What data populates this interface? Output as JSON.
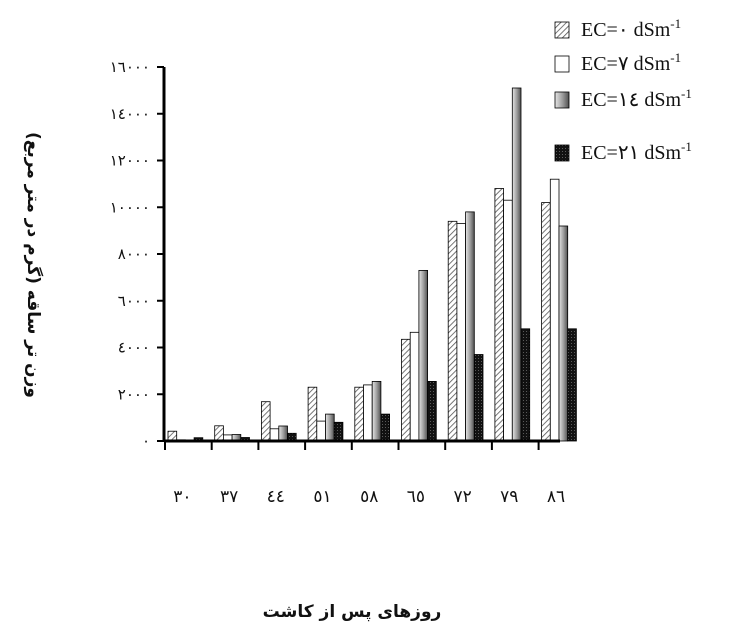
{
  "chart_data": {
    "type": "bar",
    "xlabel": "روزهای پس از کاشت",
    "ylabel": "وزن تر ساقه (گرم در متر مربع)",
    "ylim": [
      0,
      16000
    ],
    "yticks": [
      0,
      2000,
      4000,
      6000,
      8000,
      10000,
      12000,
      14000,
      16000
    ],
    "ytick_labels": [
      "۰",
      "۲۰۰۰",
      "٤۰۰۰",
      "٦۰۰۰",
      "۸۰۰۰",
      "۱۰۰۰۰",
      "۱۲۰۰۰",
      "۱٤۰۰۰",
      "۱٦۰۰۰"
    ],
    "categories": [
      "۳۰",
      "۳۷",
      "٤٤",
      "٥۱",
      "٥۸",
      "٦٥",
      "۷۲",
      "۷۹",
      "۸٦"
    ],
    "grid": false,
    "legend_position": "top-right",
    "series": [
      {
        "name": "EC=۰ dSm",
        "sup": "-1",
        "pattern": "hatch",
        "color": "#555555",
        "values": [
          420,
          650,
          1680,
          2300,
          2300,
          4350,
          9400,
          10800,
          10200
        ]
      },
      {
        "name": "EC=۷ dSm",
        "sup": "-1",
        "pattern": "white",
        "color": "#ffffff",
        "values": [
          50,
          260,
          520,
          850,
          2400,
          4650,
          9300,
          10300,
          11200
        ]
      },
      {
        "name": "EC=۱٤ dSm",
        "sup": "-1",
        "pattern": "gradient",
        "color": "#999999",
        "values": [
          20,
          280,
          640,
          1150,
          2550,
          7300,
          9800,
          15100,
          9200
        ]
      },
      {
        "name": "EC=۲۱ dSm",
        "sup": "-1",
        "pattern": "dark",
        "color": "#1a1a1a",
        "values": [
          140,
          150,
          330,
          800,
          1150,
          2550,
          3700,
          4800,
          4800
        ]
      }
    ]
  }
}
